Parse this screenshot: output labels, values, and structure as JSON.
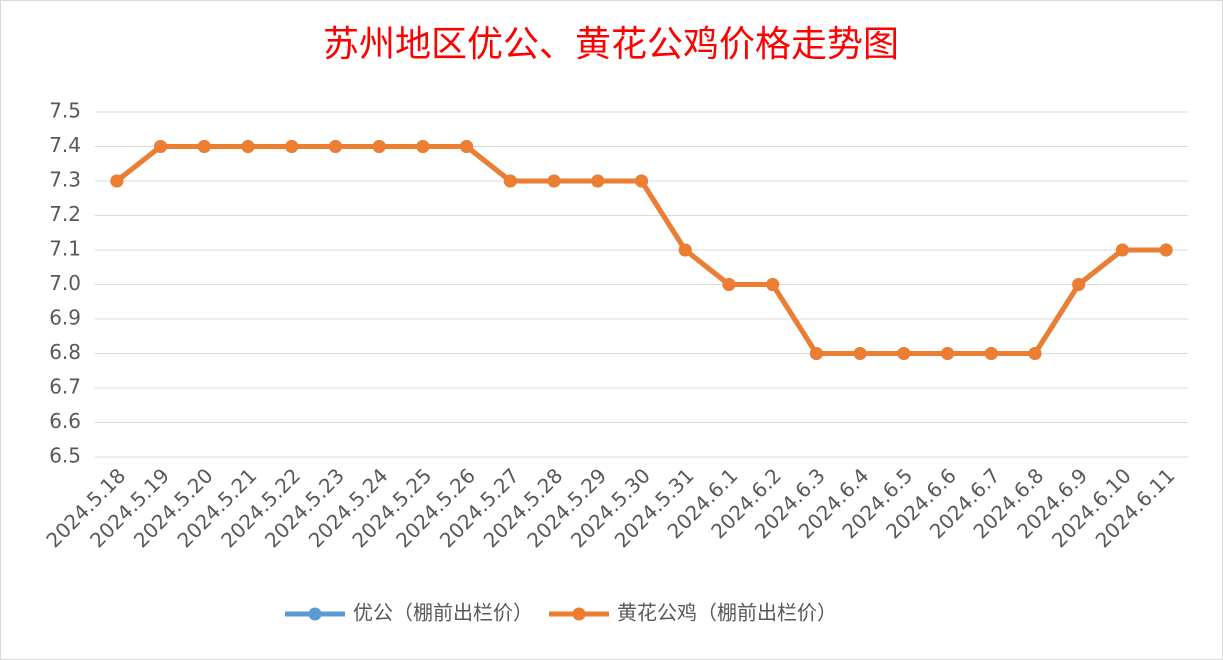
{
  "chart_data": {
    "type": "line",
    "title": "苏州地区优公、黄花公鸡价格走势图",
    "categories": [
      "2024.5.18",
      "2024.5.19",
      "2024.5.20",
      "2024.5.21",
      "2024.5.22",
      "2024.5.23",
      "2024.5.24",
      "2024.5.25",
      "2024.5.26",
      "2024.5.27",
      "2024.5.28",
      "2024.5.29",
      "2024.5.30",
      "2024.5.31",
      "2024.6.1",
      "2024.6.2",
      "2024.6.3",
      "2024.6.4",
      "2024.6.5",
      "2024.6.6",
      "2024.6.7",
      "2024.6.8",
      "2024.6.9",
      "2024.6.10",
      "2024.6.11"
    ],
    "series": [
      {
        "name": "优公（棚前出栏价）",
        "color": "#5b9bd5",
        "values": [
          7.3,
          7.4,
          7.4,
          7.4,
          7.4,
          7.4,
          7.4,
          7.4,
          7.4,
          7.3,
          7.3,
          7.3,
          7.3,
          7.1,
          7.0,
          7.0,
          6.8,
          6.8,
          6.8,
          6.8,
          6.8,
          6.8,
          7.0,
          7.1,
          7.1
        ]
      },
      {
        "name": "黄花公鸡（棚前出栏价）",
        "color": "#ed7d31",
        "values": [
          7.3,
          7.4,
          7.4,
          7.4,
          7.4,
          7.4,
          7.4,
          7.4,
          7.4,
          7.3,
          7.3,
          7.3,
          7.3,
          7.1,
          7.0,
          7.0,
          6.8,
          6.8,
          6.8,
          6.8,
          6.8,
          6.8,
          7.0,
          7.1,
          7.1
        ]
      }
    ],
    "ylim": [
      6.5,
      7.5
    ],
    "yticks": [
      6.5,
      6.6,
      6.7,
      6.8,
      6.9,
      {
        "value": 7,
        "label": "7.0"
      },
      7.1,
      7.2,
      7.3,
      7.4,
      7.5
    ],
    "grid": true,
    "legend": "bottom"
  }
}
